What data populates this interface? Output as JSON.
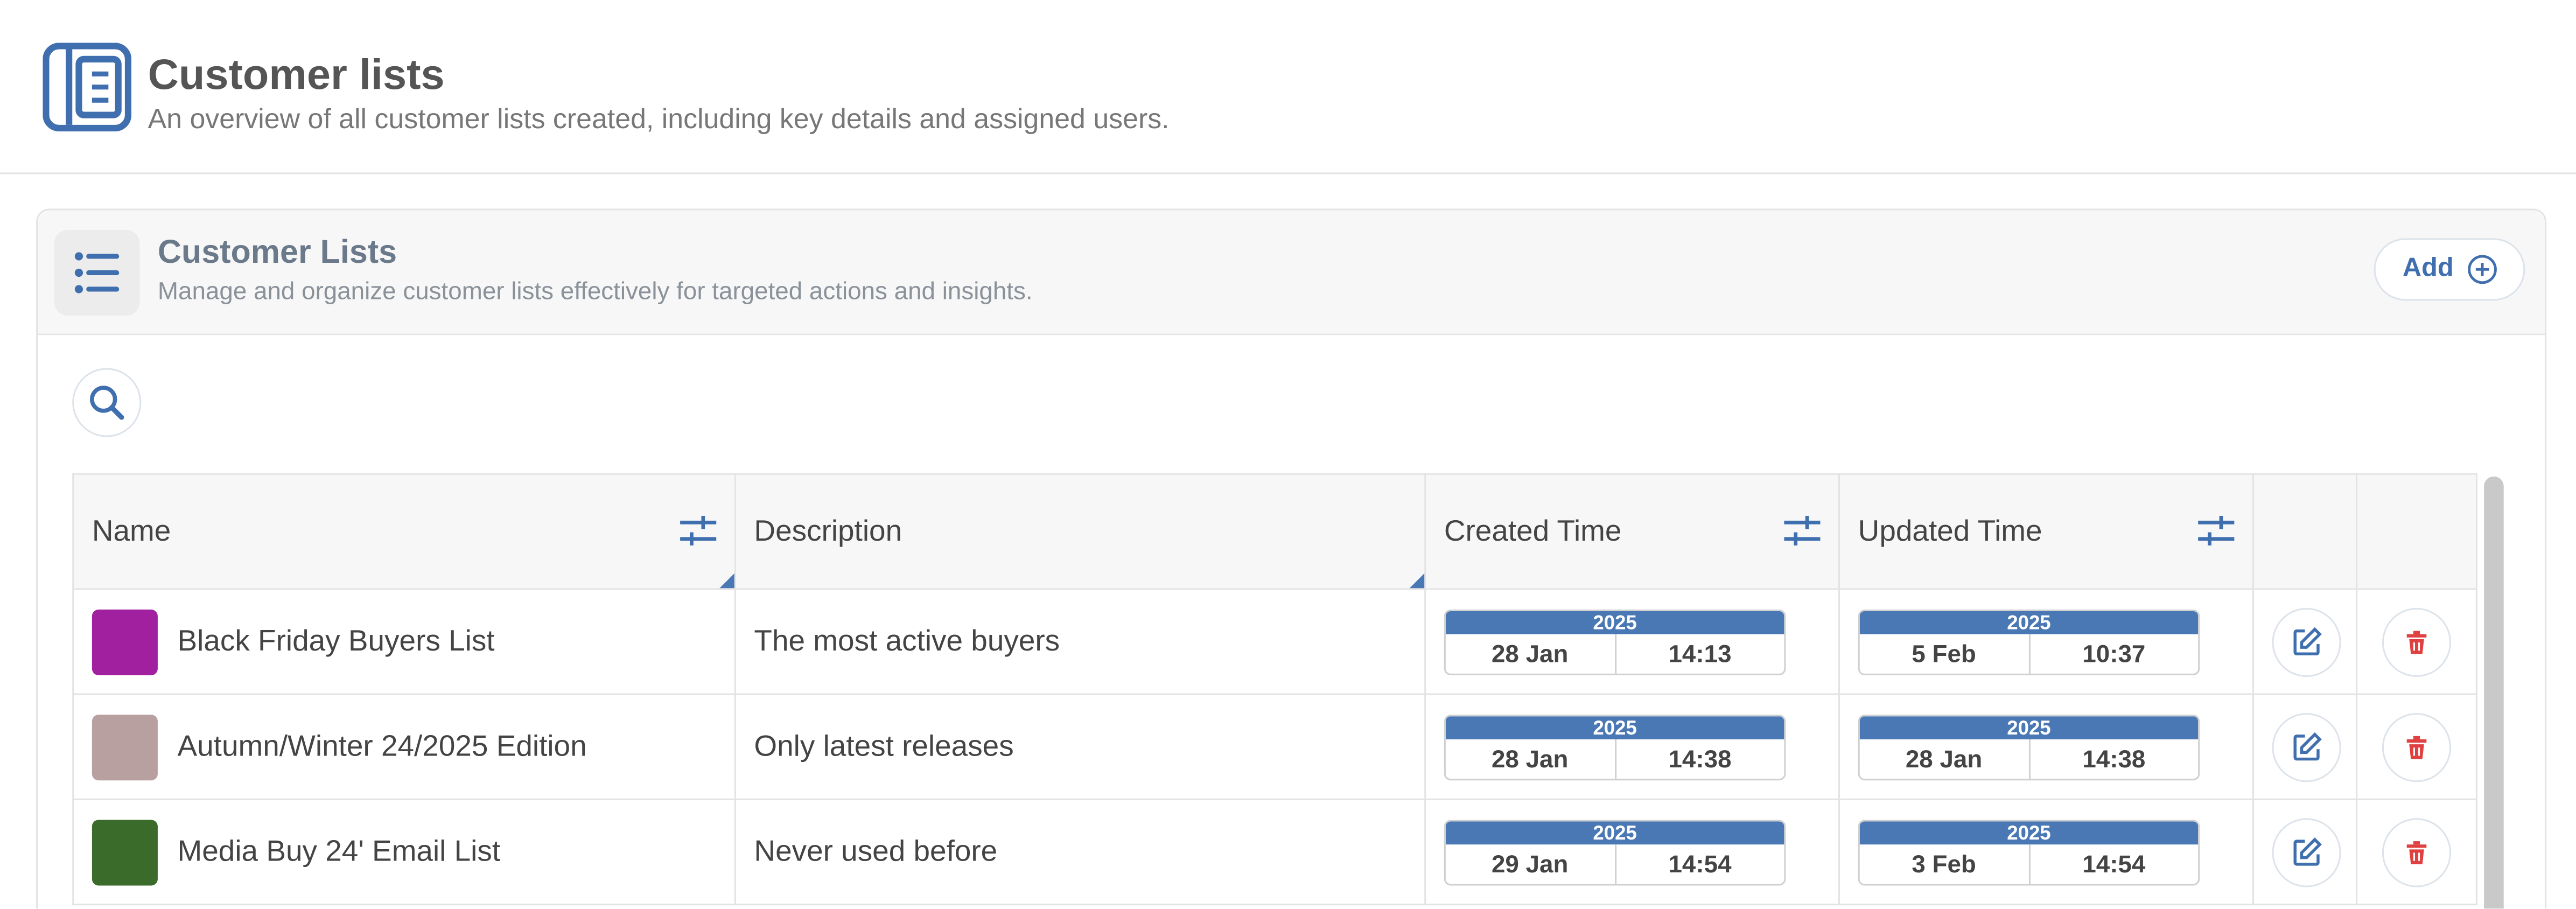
{
  "header": {
    "title": "Customer lists",
    "subtitle": "An overview of all customer lists created, including key details and assigned users."
  },
  "panel": {
    "title": "Customer Lists",
    "subtitle": "Manage and organize customer lists effectively for targeted actions and insights.",
    "add_button": "Add"
  },
  "table": {
    "columns": [
      "Name",
      "Description",
      "Created Time",
      "Updated Time"
    ],
    "rows": [
      {
        "color": "#a020a0",
        "name": "Black Friday Buyers List",
        "description": "The most active buyers",
        "created": {
          "year": "2025",
          "date": "28 Jan",
          "time": "14:13"
        },
        "updated": {
          "year": "2025",
          "date": "5 Feb",
          "time": "10:37"
        }
      },
      {
        "color": "#b9a0a0",
        "name": "Autumn/Winter 24/2025 Edition",
        "description": "Only latest releases",
        "created": {
          "year": "2025",
          "date": "28 Jan",
          "time": "14:38"
        },
        "updated": {
          "year": "2025",
          "date": "28 Jan",
          "time": "14:38"
        }
      },
      {
        "color": "#3a6b2a",
        "name": "Media Buy 24' Email List",
        "description": "Never used before",
        "created": {
          "year": "2025",
          "date": "29 Jan",
          "time": "14:54"
        },
        "updated": {
          "year": "2025",
          "date": "3 Feb",
          "time": "14:54"
        }
      }
    ]
  }
}
